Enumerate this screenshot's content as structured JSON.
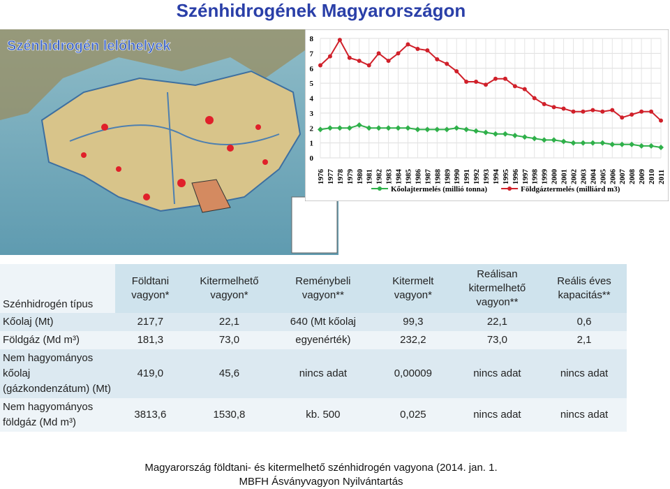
{
  "title": "Szénhidrogének Magyarországon",
  "map": {
    "label": "Szénhidrogén lelőhelyek"
  },
  "chart_data": {
    "type": "line",
    "categories": [
      "1976",
      "1977",
      "1978",
      "1979",
      "1980",
      "1981",
      "1982",
      "1983",
      "1984",
      "1985",
      "1986",
      "1987",
      "1988",
      "1989",
      "1990",
      "1991",
      "1992",
      "1993",
      "1994",
      "1995",
      "1996",
      "1997",
      "1998",
      "1999",
      "2000",
      "2001",
      "2002",
      "2003",
      "2004",
      "2005",
      "2006",
      "2007",
      "2008",
      "2009",
      "2010",
      "2011"
    ],
    "series": [
      {
        "name": "Kőolajtermelés (millió tonna)",
        "color": "#2fb04a",
        "marker": "diamond",
        "values": [
          1.9,
          2.0,
          2.0,
          2.0,
          2.2,
          2.0,
          2.0,
          2.0,
          2.0,
          2.0,
          1.9,
          1.9,
          1.9,
          1.9,
          2.0,
          1.9,
          1.8,
          1.7,
          1.6,
          1.6,
          1.5,
          1.4,
          1.3,
          1.2,
          1.2,
          1.1,
          1.0,
          1.0,
          1.0,
          1.0,
          0.9,
          0.9,
          0.9,
          0.8,
          0.8,
          0.7
        ]
      },
      {
        "name": "Földgáztermelés (milliárd m3)",
        "color": "#d0202a",
        "marker": "circle",
        "values": [
          6.2,
          6.8,
          7.9,
          6.7,
          6.5,
          6.2,
          7.0,
          6.5,
          7.0,
          7.6,
          7.3,
          7.2,
          6.6,
          6.3,
          5.8,
          5.1,
          5.1,
          4.9,
          5.3,
          5.3,
          4.8,
          4.6,
          4.0,
          3.6,
          3.4,
          3.3,
          3.1,
          3.1,
          3.2,
          3.1,
          3.2,
          2.7,
          2.9,
          3.1,
          3.1,
          2.5
        ]
      }
    ],
    "ylim": [
      0,
      8
    ],
    "yticks": [
      0,
      1,
      2,
      3,
      4,
      5,
      6,
      7,
      8
    ],
    "grid": true
  },
  "table": {
    "corner": "Szénhidrogén típus",
    "headers": [
      "Földtani vagyon*",
      "Kitermelhető vagyon*",
      "Reménybeli vagyon**",
      "Kitermelt vagyon*",
      "Reálisan kitermelhető vagyon**",
      "Reális éves kapacitás**"
    ],
    "rows": [
      [
        "Kőolaj (Mt)",
        "217,7",
        "22,1",
        "640 (Mt kőolaj",
        "99,3",
        "22,1",
        "0,6"
      ],
      [
        "Földgáz (Md m³)",
        "181,3",
        "73,0",
        "egyenérték)",
        "232,2",
        "73,0",
        "2,1"
      ],
      [
        "Nem hagyományos kőolaj (gázkondenzátum) (Mt)",
        "419,0",
        "45,6",
        "nincs adat",
        "0,00009",
        "nincs adat",
        "nincs adat"
      ],
      [
        "Nem hagyományos földgáz (Md m³)",
        "3813,6",
        "1530,8",
        "kb. 500",
        "0,025",
        "nincs adat",
        "nincs adat"
      ]
    ]
  },
  "footer": [
    "Magyarország földtani- és kitermelhető szénhidrogén vagyona (2014. jan. 1.",
    "MBFH Ásványvagyon Nyilvántartás"
  ]
}
